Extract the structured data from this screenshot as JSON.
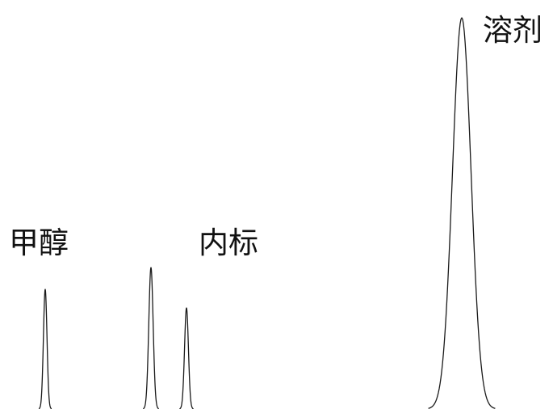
{
  "chart_data": {
    "type": "line",
    "title": "",
    "xlabel": "",
    "ylabel": "",
    "grid": false,
    "peaks": [
      {
        "x": 56,
        "height": 148,
        "width": 2.2,
        "label": "甲醇"
      },
      {
        "x": 187,
        "height": 175,
        "width": 2.7,
        "label": ""
      },
      {
        "x": 231,
        "height": 125,
        "width": 2.4,
        "label": ""
      },
      {
        "x": 572,
        "height": 484,
        "width": 11.5,
        "label": "溶剂"
      }
    ],
    "annotations": [
      {
        "text": "甲醇",
        "near_peak": 0
      },
      {
        "text": "内标",
        "near_peak": 2
      },
      {
        "text": "溶剂",
        "near_peak": 3
      }
    ],
    "line_color": "#1a1a1a"
  }
}
